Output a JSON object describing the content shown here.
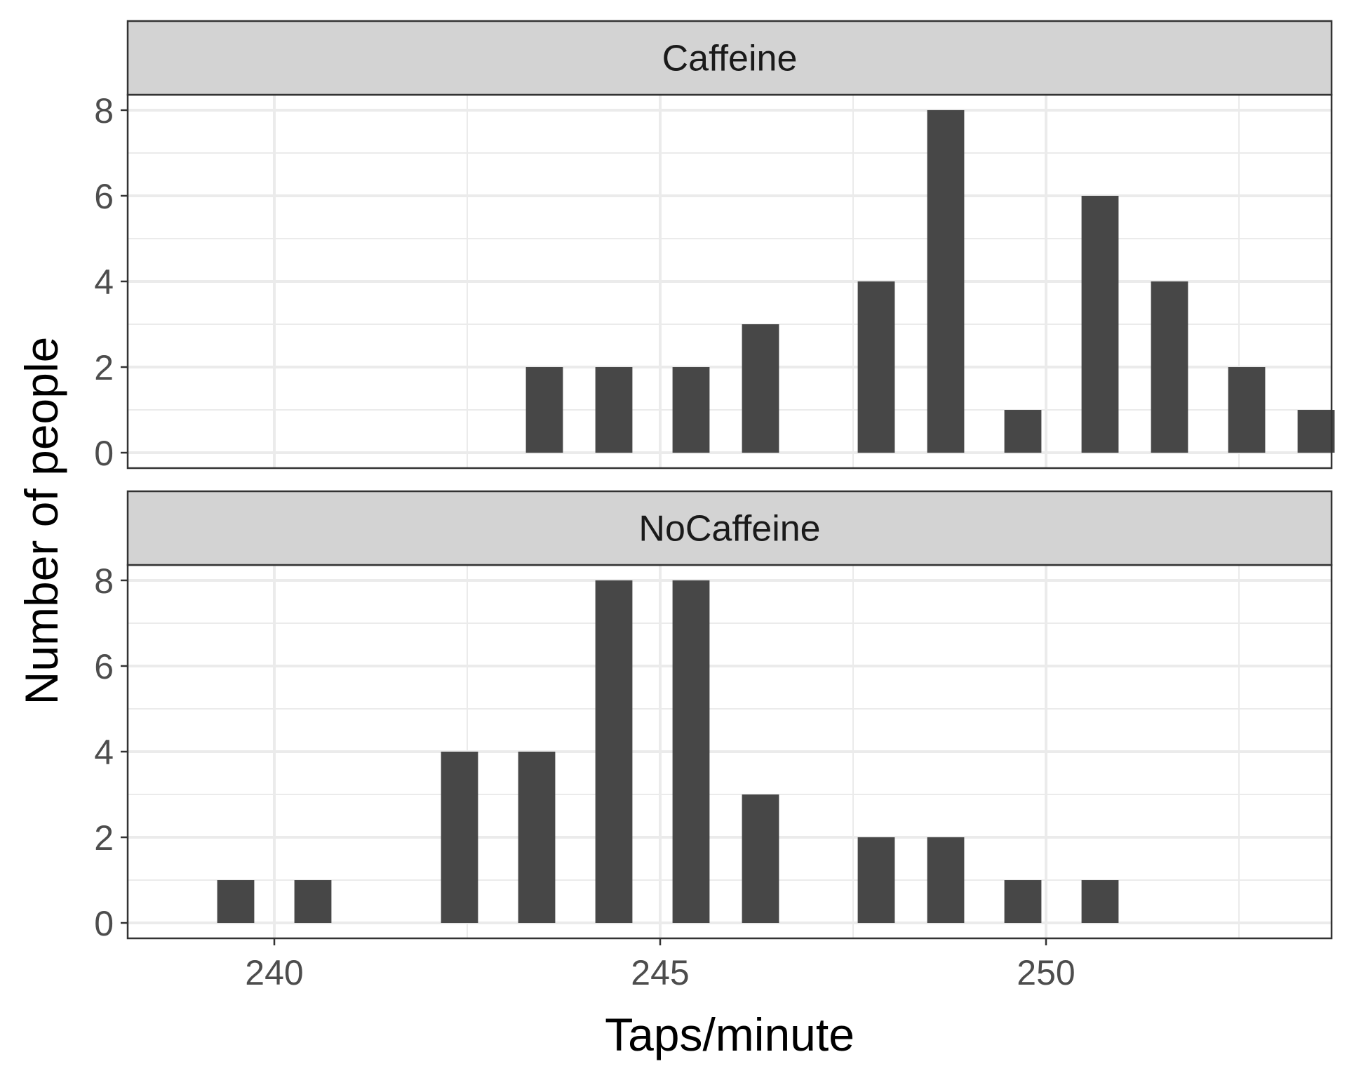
{
  "chart_data": {
    "type": "bar",
    "xlabel": "Taps/minute",
    "ylabel": "Number of people",
    "xlim": [
      238.1,
      253.7
    ],
    "ylim": [
      -0.36,
      8.36
    ],
    "x_ticks": [
      240,
      245,
      250
    ],
    "y_ticks": [
      0,
      2,
      4,
      6,
      8
    ],
    "bar_width": 0.48,
    "grid": true,
    "colors": {
      "bar": "#474747",
      "strip": "#d3d3d3",
      "grid": "#ebebeb",
      "frame": "#333333"
    },
    "panels": [
      {
        "label": "Caffeine",
        "x": [
          243.5,
          244.4,
          245.4,
          246.3,
          247.8,
          248.7,
          249.7,
          250.7,
          251.6,
          252.6,
          253.5
        ],
        "values": [
          2,
          2,
          2,
          3,
          4,
          8,
          1,
          6,
          4,
          2,
          1
        ]
      },
      {
        "label": "NoCaffeine",
        "x": [
          239.5,
          240.5,
          242.4,
          243.4,
          244.4,
          245.4,
          246.3,
          247.8,
          248.7,
          249.7,
          250.7
        ],
        "values": [
          1,
          1,
          4,
          4,
          8,
          8,
          3,
          2,
          2,
          1,
          1
        ]
      }
    ]
  }
}
